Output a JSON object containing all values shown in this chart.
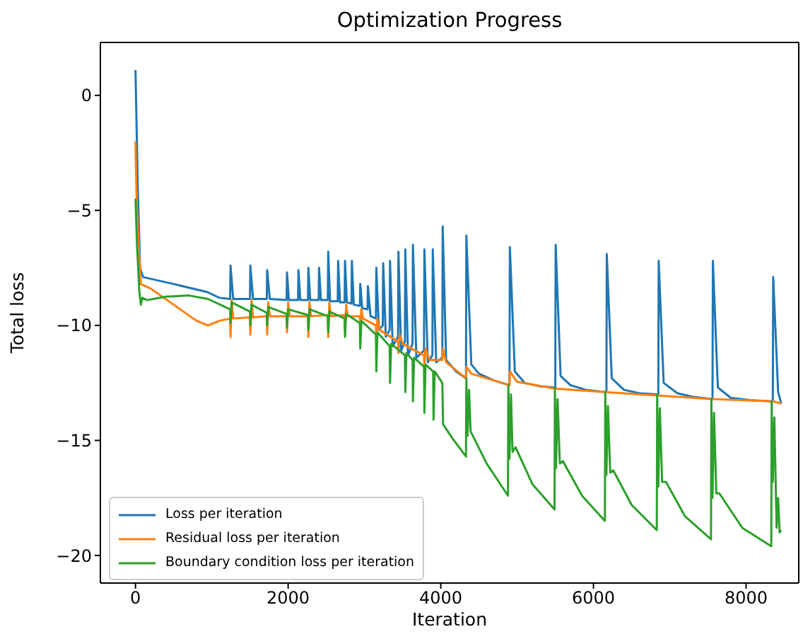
{
  "chart_data": {
    "type": "line",
    "title": "Optimization Progress",
    "xlabel": "Iteration",
    "ylabel": "Total loss",
    "xlim": [
      -460,
      8690
    ],
    "xticks": [
      0,
      2000,
      4000,
      6000,
      8000
    ],
    "ylim": [
      -21.2,
      2.3
    ],
    "yticks": [
      0,
      {
        "value": -5,
        "label": "−5"
      },
      {
        "value": -10,
        "label": "−10"
      },
      {
        "value": -15,
        "label": "−15"
      },
      {
        "value": -20,
        "label": "−20"
      }
    ],
    "grid": false,
    "legend": "bottom left",
    "marker": "none",
    "line_style": "solid",
    "series": [
      {
        "name": "Loss per iteration",
        "color": "#1f77b4",
        "x": [
          0,
          30,
          60,
          100,
          500,
          940,
          1100,
          1240,
          1245,
          1280,
          1500,
          1505,
          1540,
          1720,
          1725,
          1760,
          1980,
          1985,
          2010,
          2130,
          2135,
          2160,
          2260,
          2265,
          2290,
          2400,
          2405,
          2430,
          2520,
          2525,
          2550,
          2650,
          2655,
          2680,
          2740,
          2745,
          2770,
          2830,
          2835,
          2860,
          2940,
          2945,
          2970,
          3040,
          3045,
          3080,
          3150,
          3155,
          3190,
          3240,
          3245,
          3280,
          3330,
          3335,
          3370,
          3440,
          3445,
          3480,
          3530,
          3535,
          3570,
          3630,
          3635,
          3680,
          3780,
          3785,
          3830,
          3890,
          3895,
          3940,
          4020,
          4025,
          4070,
          4200,
          4330,
          4335,
          4400,
          4500,
          4700,
          4900,
          4905,
          4970,
          5100,
          5300,
          5500,
          5505,
          5570,
          5700,
          5900,
          6170,
          6175,
          6240,
          6400,
          6600,
          6850,
          6855,
          6920,
          7100,
          7300,
          7560,
          7565,
          7630,
          7800,
          8050,
          8350,
          8355,
          8420,
          8460
        ],
        "values": [
          1.1,
          -4,
          -7.5,
          -7.9,
          -8.2,
          -8.55,
          -8.8,
          -8.85,
          -7.4,
          -8.85,
          -8.85,
          -7.4,
          -8.85,
          -8.85,
          -7.6,
          -8.85,
          -8.9,
          -7.7,
          -8.9,
          -8.9,
          -7.6,
          -8.9,
          -8.9,
          -7.5,
          -8.9,
          -8.9,
          -7.5,
          -8.9,
          -8.9,
          -6.8,
          -8.95,
          -8.95,
          -7.2,
          -9,
          -9,
          -7.2,
          -9,
          -9.05,
          -7.2,
          -9.1,
          -9.15,
          -8.2,
          -9.25,
          -9.3,
          -8.3,
          -9.6,
          -9.7,
          -7.5,
          -10.2,
          -10,
          -7.3,
          -10.5,
          -10.2,
          -7.2,
          -10.9,
          -10.5,
          -6.8,
          -11.1,
          -10.7,
          -6.7,
          -11.3,
          -10.8,
          -6.5,
          -11.4,
          -11.1,
          -6.7,
          -11.6,
          -11.3,
          -6.7,
          -11.6,
          -11.4,
          -5.7,
          -11.5,
          -12,
          -12.3,
          -6.1,
          -11.7,
          -12.1,
          -12.4,
          -12.6,
          -6.6,
          -12,
          -12.5,
          -12.65,
          -12.7,
          -6.5,
          -12.2,
          -12.6,
          -12.8,
          -12.9,
          -6.9,
          -12.3,
          -12.8,
          -12.95,
          -13,
          -7.2,
          -12.5,
          -12.95,
          -13.1,
          -13.2,
          -7.2,
          -12.7,
          -13.15,
          -13.25,
          -13.3,
          -7.9,
          -12.9,
          -13.4
        ]
      },
      {
        "name": "Residual loss per iteration",
        "color": "#ff7f0e",
        "x": [
          0,
          15,
          40,
          70,
          200,
          500,
          800,
          950,
          1100,
          1240,
          1245,
          1260,
          1280,
          1500,
          1505,
          1520,
          1540,
          1720,
          1725,
          1740,
          1760,
          1980,
          1985,
          2000,
          2020,
          2260,
          2265,
          2280,
          2300,
          2520,
          2525,
          2540,
          2560,
          2740,
          2745,
          2760,
          2780,
          2940,
          2945,
          2960,
          2980,
          3150,
          3155,
          3170,
          3200,
          3440,
          3445,
          3460,
          3500,
          3780,
          3785,
          3800,
          3850,
          4020,
          4025,
          4070,
          4330,
          4335,
          4400,
          4900,
          4905,
          5000,
          5500,
          6170,
          6850,
          7560,
          8350,
          8460
        ],
        "values": [
          -2,
          -4.5,
          -6.5,
          -8.2,
          -8.4,
          -9.1,
          -9.8,
          -10,
          -9.8,
          -9.7,
          -10.5,
          -8.9,
          -9.7,
          -9.65,
          -10.4,
          -8.9,
          -9.65,
          -9.6,
          -10.4,
          -9,
          -9.6,
          -9.6,
          -10.3,
          -9,
          -9.6,
          -9.6,
          -10.5,
          -9,
          -9.6,
          -9.55,
          -10.5,
          -9,
          -9.6,
          -9.55,
          -10.3,
          -9.1,
          -9.6,
          -9.6,
          -10.2,
          -9.3,
          -9.7,
          -10,
          -10.6,
          -9.7,
          -10.2,
          -10.7,
          -11.2,
          -10.4,
          -10.8,
          -11.3,
          -11.8,
          -11,
          -11.5,
          -11.5,
          -11,
          -11.6,
          -12.3,
          -11.8,
          -12.1,
          -12.6,
          -12,
          -12.45,
          -12.75,
          -12.9,
          -13.05,
          -13.2,
          -13.3,
          -13.4
        ]
      },
      {
        "name": "Boundary condition loss per iteration",
        "color": "#2ca02c",
        "x": [
          0,
          20,
          50,
          70,
          90,
          150,
          400,
          700,
          950,
          1240,
          1245,
          1260,
          1500,
          1505,
          1520,
          1720,
          1725,
          1740,
          1980,
          1985,
          2000,
          2260,
          2265,
          2280,
          2520,
          2525,
          2540,
          2740,
          2745,
          2760,
          2940,
          2945,
          2960,
          3150,
          3155,
          3170,
          3330,
          3335,
          3350,
          3530,
          3535,
          3550,
          3630,
          3635,
          3650,
          3780,
          3785,
          3800,
          3900,
          3905,
          3920,
          4020,
          4030,
          4150,
          4330,
          4335,
          4350,
          4370,
          4390,
          4420,
          4600,
          4880,
          4885,
          4900,
          4920,
          4940,
          4980,
          5200,
          5490,
          5495,
          5510,
          5530,
          5560,
          5600,
          5850,
          6150,
          6155,
          6170,
          6190,
          6220,
          6260,
          6500,
          6830,
          6835,
          6850,
          6870,
          6900,
          6950,
          7200,
          7540,
          7545,
          7560,
          7580,
          7610,
          7650,
          7950,
          8330,
          8335,
          8350,
          8370,
          8400,
          8420,
          8440,
          8460
        ],
        "values": [
          -4.5,
          -6.5,
          -8.5,
          -9.1,
          -8.8,
          -8.9,
          -8.75,
          -8.7,
          -8.85,
          -9.3,
          -9.9,
          -9,
          -9.4,
          -10,
          -9.1,
          -9.45,
          -10,
          -9.2,
          -9.5,
          -10.1,
          -9.3,
          -9.55,
          -10.2,
          -9.3,
          -9.6,
          -10.3,
          -9.4,
          -9.7,
          -10.5,
          -9.5,
          -9.9,
          -11,
          -9.8,
          -10.4,
          -12,
          -10.3,
          -10.9,
          -12.5,
          -10.8,
          -11.3,
          -12.9,
          -11.2,
          -11.5,
          -13.3,
          -11.4,
          -11.8,
          -13.8,
          -11.7,
          -12,
          -14.1,
          -12,
          -12.5,
          -14.3,
          -14.9,
          -15.7,
          -12.3,
          -14.8,
          -12.8,
          -14.6,
          -14.8,
          -16,
          -17.4,
          -12.6,
          -15.8,
          -13,
          -15.5,
          -15.3,
          -16.9,
          -18,
          -12.7,
          -16.2,
          -13.2,
          -16,
          -15.9,
          -17.4,
          -18.5,
          -12.9,
          -16.5,
          -13.5,
          -16.4,
          -16.3,
          -17.8,
          -18.9,
          -13,
          -17,
          -13.6,
          -16.8,
          -16.8,
          -18.3,
          -19.3,
          -13.2,
          -17.5,
          -13.8,
          -17.3,
          -17.3,
          -18.8,
          -19.6,
          -13.3,
          -16.8,
          -14,
          -18.8,
          -17.5,
          -19,
          -18.9
        ]
      }
    ]
  }
}
